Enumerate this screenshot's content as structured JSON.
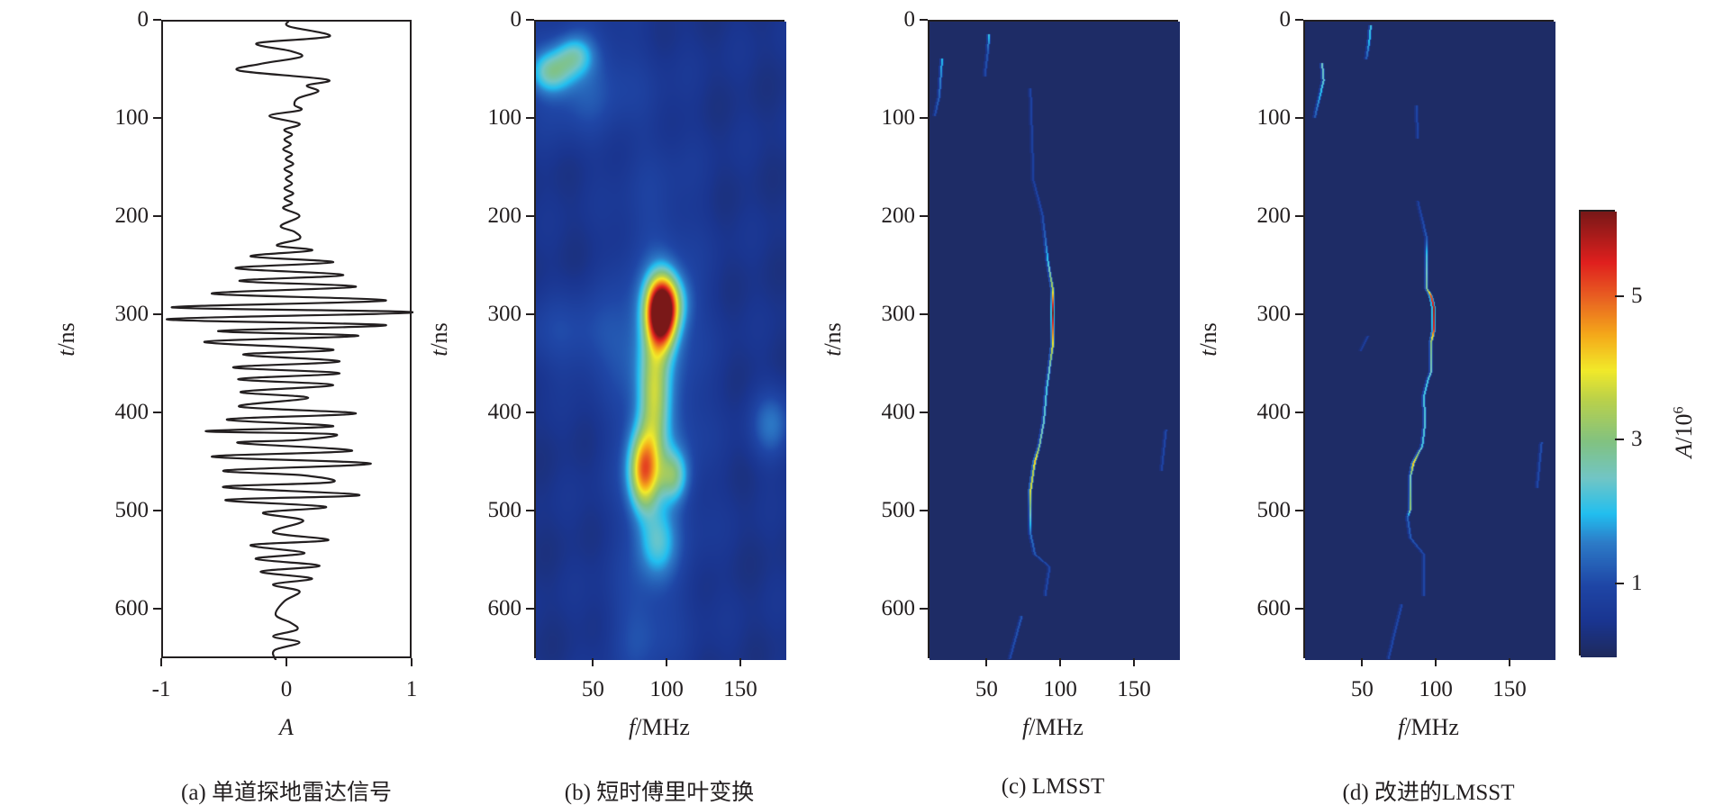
{
  "chart_data": [
    {
      "type": "line",
      "caption": "(a) 单道探地雷达信号",
      "xlabel": {
        "var": "A",
        "unit": ""
      },
      "ylabel": {
        "var": "t",
        "unit": "/ns"
      },
      "xlim": [
        -1,
        1
      ],
      "ylim": [
        0,
        650
      ],
      "y_inverted": true,
      "xticks": [
        -1,
        0,
        1
      ],
      "yticks": [
        0,
        100,
        200,
        300,
        400,
        500,
        600
      ],
      "line_color": "#231f20",
      "points": [
        [
          0,
          0
        ],
        [
          5,
          0.01
        ],
        [
          15,
          0.33
        ],
        [
          22,
          -0.25
        ],
        [
          30,
          0.02
        ],
        [
          36,
          0.1
        ],
        [
          43,
          -0.22
        ],
        [
          50,
          -0.39
        ],
        [
          59,
          0.31
        ],
        [
          65,
          0.15
        ],
        [
          71,
          0.24
        ],
        [
          78,
          0.08
        ],
        [
          85,
          0.05
        ],
        [
          90,
          0.1
        ],
        [
          96,
          -0.15
        ],
        [
          104,
          0.09
        ],
        [
          110,
          -0.03
        ],
        [
          115,
          0.03
        ],
        [
          120,
          -0.03
        ],
        [
          125,
          0.02
        ],
        [
          130,
          -0.04
        ],
        [
          135,
          0.03
        ],
        [
          140,
          -0.02
        ],
        [
          145,
          0.04
        ],
        [
          150,
          -0.03
        ],
        [
          155,
          0.03
        ],
        [
          160,
          -0.02
        ],
        [
          165,
          0.03
        ],
        [
          170,
          -0.03
        ],
        [
          175,
          0.04
        ],
        [
          180,
          -0.03
        ],
        [
          185,
          0.03
        ],
        [
          190,
          -0.04
        ],
        [
          198,
          0.09
        ],
        [
          208,
          -0.06
        ],
        [
          214,
          0.05
        ],
        [
          221,
          0.09
        ],
        [
          228,
          -0.09
        ],
        [
          233,
          0.19
        ],
        [
          239,
          -0.3
        ],
        [
          245,
          0.36
        ],
        [
          251,
          -0.42
        ],
        [
          258,
          0.44
        ],
        [
          264,
          -0.39
        ],
        [
          270,
          0.54
        ],
        [
          277,
          -0.61
        ],
        [
          284,
          0.78
        ],
        [
          291,
          -0.93
        ],
        [
          296,
          1.0
        ],
        [
          303,
          -0.97
        ],
        [
          309,
          0.78
        ],
        [
          315,
          -0.56
        ],
        [
          320,
          0.56
        ],
        [
          326,
          -0.67
        ],
        [
          334,
          0.36
        ],
        [
          339,
          -0.36
        ],
        [
          346,
          0.41
        ],
        [
          352,
          -0.44
        ],
        [
          358,
          0.41
        ],
        [
          364,
          -0.4
        ],
        [
          370,
          0.36
        ],
        [
          377,
          -0.38
        ],
        [
          383,
          0.16
        ],
        [
          392,
          -0.39
        ],
        [
          399,
          0.54
        ],
        [
          405,
          -0.49
        ],
        [
          412,
          0.36
        ],
        [
          417,
          -0.66
        ],
        [
          420,
          0.36
        ],
        [
          426,
          0.08
        ],
        [
          429,
          -0.4
        ],
        [
          437,
          0.51
        ],
        [
          443,
          -0.61
        ],
        [
          450,
          0.66
        ],
        [
          457,
          -0.51
        ],
        [
          462,
          0.12
        ],
        [
          469,
          0.34
        ],
        [
          474,
          -0.52
        ],
        [
          482,
          0.57
        ],
        [
          487,
          -0.5
        ],
        [
          494,
          0.3
        ],
        [
          500,
          -0.2
        ],
        [
          508,
          0.12
        ],
        [
          520,
          -0.12
        ],
        [
          528,
          0.32
        ],
        [
          533,
          -0.3
        ],
        [
          541,
          0.13
        ],
        [
          547,
          -0.26
        ],
        [
          554,
          0.25
        ],
        [
          560,
          -0.22
        ],
        [
          567,
          0.19
        ],
        [
          573,
          -0.12
        ],
        [
          580,
          0.09
        ],
        [
          590,
          -0.03
        ],
        [
          604,
          -0.1
        ],
        [
          612,
          0.02
        ],
        [
          619,
          0.07
        ],
        [
          626,
          -0.12
        ],
        [
          632,
          0.09
        ],
        [
          640,
          -0.11
        ],
        [
          650,
          -0.1
        ]
      ]
    },
    {
      "type": "heatmap",
      "caption": "(b) 短时傅里叶变换",
      "xlabel": {
        "var": "f",
        "unit": "/MHz"
      },
      "ylabel": {
        "var": "t",
        "unit": "/ns"
      },
      "xlim": [
        10,
        180
      ],
      "ylim": [
        0,
        650
      ],
      "y_inverted": true,
      "xticks": [
        50,
        100,
        150
      ],
      "yticks": [
        0,
        100,
        200,
        300,
        400,
        500,
        600
      ],
      "background_level": 0.45,
      "peaks": [
        {
          "t": 296,
          "f": 95,
          "A": 5.9,
          "st": 24,
          "sf": 7
        },
        {
          "t": 285,
          "f": 100,
          "A": 1.5,
          "st": 20,
          "sf": 10
        },
        {
          "t": 457,
          "f": 83,
          "A": 3.6,
          "st": 28,
          "sf": 7
        },
        {
          "t": 462,
          "f": 103,
          "A": 1.8,
          "st": 18,
          "sf": 7
        },
        {
          "t": 380,
          "f": 90,
          "A": 2.2,
          "st": 45,
          "sf": 7
        },
        {
          "t": 530,
          "f": 92,
          "A": 1.3,
          "st": 25,
          "sf": 9
        },
        {
          "t": 380,
          "f": 92,
          "A": 1.0,
          "st": 140,
          "sf": 20
        },
        {
          "t": 51,
          "f": 20,
          "A": 1.8,
          "st": 15,
          "sf": 10
        },
        {
          "t": 34,
          "f": 36,
          "A": 1.4,
          "st": 14,
          "sf": 9
        },
        {
          "t": 60,
          "f": 40,
          "A": 0.8,
          "st": 40,
          "sf": 25
        },
        {
          "t": 320,
          "f": 40,
          "A": 0.6,
          "st": 30,
          "sf": 30
        },
        {
          "t": 411,
          "f": 170,
          "A": 1.0,
          "st": 25,
          "sf": 10
        },
        {
          "t": 620,
          "f": 80,
          "A": 0.5,
          "st": 40,
          "sf": 15
        }
      ]
    },
    {
      "type": "heatmap",
      "caption": "(c) LMSST",
      "xlabel": {
        "var": "f",
        "unit": "/MHz"
      },
      "ylabel": {
        "var": "t",
        "unit": "/ns"
      },
      "xlim": [
        10,
        180
      ],
      "ylim": [
        0,
        650
      ],
      "y_inverted": true,
      "xticks": [
        50,
        100,
        150
      ],
      "yticks": [
        0,
        100,
        200,
        300,
        400,
        500,
        600
      ],
      "background_level": 0.1,
      "ridges": [
        [
          [
            68,
            78,
            0.9
          ],
          [
            161,
            80,
            0.8
          ],
          [
            195,
            86,
            1.0
          ],
          [
            220,
            88,
            1.3
          ],
          [
            246,
            90,
            2.2
          ],
          [
            271,
            93,
            3.5
          ],
          [
            288,
            93,
            5.5
          ],
          [
            296,
            93,
            6.2
          ],
          [
            313,
            93,
            5.0
          ],
          [
            330,
            93,
            3.8
          ],
          [
            351,
            91,
            2.5
          ],
          [
            373,
            89,
            2.2
          ],
          [
            407,
            87,
            2.4
          ],
          [
            432,
            84,
            2.8
          ],
          [
            447,
            81,
            4.3
          ],
          [
            457,
            80,
            3.5
          ],
          [
            478,
            78,
            3.8
          ],
          [
            521,
            78,
            1.5
          ],
          [
            542,
            81,
            1.2
          ],
          [
            555,
            91,
            1.0
          ],
          [
            584,
            88,
            1.0
          ]
        ],
        [
          [
            13,
            50,
            2.2
          ],
          [
            30,
            49,
            1.2
          ],
          [
            55,
            47,
            1.0
          ]
        ],
        [
          [
            38,
            18,
            2.0
          ],
          [
            76,
            16,
            1.3
          ],
          [
            95,
            13,
            1.0
          ]
        ],
        [
          [
            605,
            72,
            1.2
          ],
          [
            648,
            64,
            1.0
          ]
        ],
        [
          [
            415,
            170,
            1.0
          ],
          [
            457,
            167,
            0.9
          ]
        ]
      ]
    },
    {
      "type": "heatmap",
      "caption": "(d) 改进的LMSST",
      "xlabel": {
        "var": "f",
        "unit": "/MHz"
      },
      "ylabel": {
        "var": "t",
        "unit": "/ns"
      },
      "xlim": [
        10,
        180
      ],
      "ylim": [
        0,
        650
      ],
      "y_inverted": true,
      "xticks": [
        50,
        100,
        150
      ],
      "yticks": [
        0,
        100,
        200,
        300,
        400,
        500,
        600
      ],
      "background_level": 0.1,
      "ridges": [
        [
          [
            182,
            86,
            0.8
          ],
          [
            220,
            92,
            1.2
          ],
          [
            237,
            92,
            2.2
          ],
          [
            271,
            92,
            2.8
          ],
          [
            279,
            95,
            5.0
          ],
          [
            292,
            97,
            6.0
          ],
          [
            313,
            97,
            5.5
          ],
          [
            326,
            95,
            3.0
          ],
          [
            356,
            95,
            2.5
          ],
          [
            364,
            93,
            2.2
          ],
          [
            381,
            90,
            2.2
          ],
          [
            407,
            91,
            2.3
          ],
          [
            432,
            89,
            2.2
          ],
          [
            440,
            86,
            3.0
          ],
          [
            449,
            83,
            4.3
          ],
          [
            462,
            81,
            2.5
          ],
          [
            496,
            81,
            3.2
          ],
          [
            504,
            79,
            1.3
          ],
          [
            525,
            81,
            1.2
          ],
          [
            542,
            90,
            1.0
          ],
          [
            584,
            90,
            1.0
          ]
        ],
        [
          [
            4,
            54,
            2.2
          ],
          [
            20,
            53,
            2.0
          ],
          [
            38,
            51,
            1.2
          ]
        ],
        [
          [
            42,
            21,
            2.5
          ],
          [
            60,
            22,
            2.4
          ],
          [
            97,
            16,
            1.2
          ]
        ],
        [
          [
            85,
            85,
            1.0
          ],
          [
            118,
            86,
            0.9
          ]
        ],
        [
          [
            593,
            75,
            1.0
          ],
          [
            648,
            66,
            1.0
          ]
        ],
        [
          [
            428,
            170,
            1.1
          ],
          [
            474,
            167,
            1.0
          ]
        ],
        [
          [
            320,
            52,
            0.8
          ],
          [
            335,
            47,
            0.7
          ]
        ]
      ]
    }
  ],
  "colorbar": {
    "label": {
      "var": "A",
      "unit": "/10",
      "exp": "6"
    },
    "range": [
      0,
      6.2
    ],
    "ticks": [
      1,
      3,
      5
    ],
    "colormap": [
      [
        0.0,
        "#1f2a5c"
      ],
      [
        0.5,
        "#1a3590"
      ],
      [
        1.0,
        "#1f46a6"
      ],
      [
        1.6,
        "#2d7cc8"
      ],
      [
        2.0,
        "#22bff0"
      ],
      [
        2.5,
        "#72c6c6"
      ],
      [
        3.0,
        "#82c282"
      ],
      [
        3.6,
        "#bcd24a"
      ],
      [
        4.0,
        "#f2ea2a"
      ],
      [
        4.5,
        "#f5a81a"
      ],
      [
        5.0,
        "#e96222"
      ],
      [
        5.5,
        "#e0201e"
      ],
      [
        6.2,
        "#7a1818"
      ]
    ]
  }
}
